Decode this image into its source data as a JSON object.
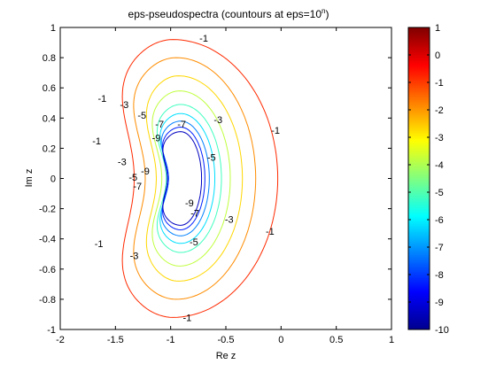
{
  "chart_data": {
    "type": "contour",
    "title": "eps-pseudospectra (countours at eps=10",
    "title_superscript": "n",
    "title_suffix": ")",
    "xlabel": "Re z",
    "ylabel": "Im z",
    "xlim": [
      -2,
      1
    ],
    "ylim": [
      -1,
      1
    ],
    "x_ticks": [
      "-2",
      "-1.5",
      "-1",
      "-0.5",
      "0",
      "0.5",
      "1"
    ],
    "y_ticks": [
      "1",
      "0.8",
      "0.6",
      "0.4",
      "0.2",
      "0",
      "-0.2",
      "-0.4",
      "-0.6",
      "-0.8",
      "-1"
    ],
    "grid": false,
    "colorbar": {
      "min": -10,
      "max": 1,
      "ticks": [
        "1",
        "0",
        "-1",
        "-2",
        "-3",
        "-4",
        "-5",
        "-6",
        "-7",
        "-8",
        "-9",
        "-10"
      ],
      "colormap": [
        "#00008f",
        "#0000ff",
        "#0080ff",
        "#00ffff",
        "#80ff80",
        "#ffff00",
        "#ff8000",
        "#ff0000",
        "#800000"
      ]
    },
    "contours": [
      {
        "level": -1,
        "color": "#ff2a00",
        "center": [
          -0.98,
          0.0
        ],
        "right": 0.95,
        "left": 0.68,
        "top": 0.92,
        "bottom": 0.92,
        "indent": 0.33,
        "curvature_shift": 0.2
      },
      {
        "level": -2,
        "color": "#ff8c00",
        "center": [
          -0.95,
          0.0
        ],
        "right": 0.72,
        "left": 0.58,
        "top": 0.8,
        "bottom": 0.8,
        "indent": 0.3,
        "curvature_shift": 0.2
      },
      {
        "level": -3,
        "color": "#ffd700",
        "center": [
          -0.93,
          0.0
        ],
        "right": 0.58,
        "left": 0.44,
        "top": 0.68,
        "bottom": 0.68,
        "indent": 0.24,
        "curvature_shift": 0.2
      },
      {
        "level": -4,
        "color": "#c0ff3f",
        "center": [
          -0.92,
          0.0
        ],
        "right": 0.46,
        "left": 0.38,
        "top": 0.58,
        "bottom": 0.58,
        "indent": 0.22,
        "curvature_shift": 0.2
      },
      {
        "level": -5,
        "color": "#40ffbf",
        "center": [
          -0.91,
          0.0
        ],
        "right": 0.37,
        "left": 0.33,
        "top": 0.49,
        "bottom": 0.49,
        "indent": 0.2,
        "curvature_shift": 0.2
      },
      {
        "level": -6,
        "color": "#00dfff",
        "center": [
          -0.91,
          0.0
        ],
        "right": 0.31,
        "left": 0.29,
        "top": 0.43,
        "bottom": 0.43,
        "indent": 0.18,
        "curvature_shift": 0.2
      },
      {
        "level": -7,
        "color": "#0080ff",
        "center": [
          -0.91,
          0.0
        ],
        "right": 0.26,
        "left": 0.27,
        "top": 0.38,
        "bottom": 0.38,
        "indent": 0.16,
        "curvature_shift": 0.2
      },
      {
        "level": -8,
        "color": "#0020ff",
        "center": [
          -0.91,
          0.0
        ],
        "right": 0.22,
        "left": 0.25,
        "top": 0.34,
        "bottom": 0.34,
        "indent": 0.14,
        "curvature_shift": 0.2
      },
      {
        "level": -9,
        "color": "#0000c0",
        "center": [
          -0.91,
          0.0
        ],
        "right": 0.19,
        "left": 0.24,
        "top": 0.31,
        "bottom": 0.31,
        "indent": 0.12,
        "curvature_shift": 0.2
      }
    ],
    "contour_labels": [
      {
        "text": "-1",
        "x": -0.7,
        "y": 0.93
      },
      {
        "text": "-1",
        "x": -1.62,
        "y": 0.53
      },
      {
        "text": "-1",
        "x": -1.67,
        "y": 0.25
      },
      {
        "text": "-1",
        "x": -0.05,
        "y": 0.32
      },
      {
        "text": "-1",
        "x": -0.1,
        "y": -0.35
      },
      {
        "text": "-1",
        "x": -1.65,
        "y": -0.43
      },
      {
        "text": "-1",
        "x": -0.85,
        "y": -0.92
      },
      {
        "text": "-3",
        "x": -1.42,
        "y": 0.49
      },
      {
        "text": "-3",
        "x": -0.57,
        "y": 0.39
      },
      {
        "text": "-3",
        "x": -1.44,
        "y": 0.11
      },
      {
        "text": "-3",
        "x": -0.47,
        "y": -0.27
      },
      {
        "text": "-3",
        "x": -1.33,
        "y": -0.51
      },
      {
        "text": "-5",
        "x": -1.26,
        "y": 0.42
      },
      {
        "text": "-5",
        "x": -0.63,
        "y": 0.14
      },
      {
        "text": "-5",
        "x": -1.34,
        "y": 0.01
      },
      {
        "text": "-5",
        "x": -0.79,
        "y": -0.42
      },
      {
        "text": "-7",
        "x": -1.1,
        "y": 0.36
      },
      {
        "text": "-7",
        "x": -1.3,
        "y": -0.05
      },
      {
        "text": "-7",
        "x": -0.78,
        "y": -0.23
      },
      {
        "text": "-7",
        "x": -0.9,
        "y": 0.36
      },
      {
        "text": "-9",
        "x": -1.13,
        "y": 0.27
      },
      {
        "text": "-9",
        "x": -1.23,
        "y": 0.05
      },
      {
        "text": "-9",
        "x": -0.83,
        "y": -0.16
      }
    ]
  }
}
